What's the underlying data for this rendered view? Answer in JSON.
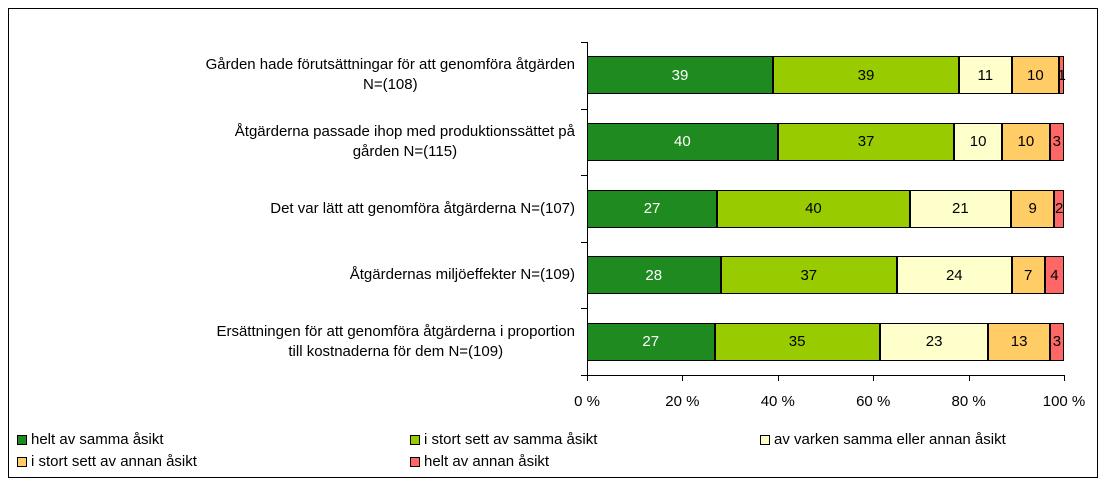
{
  "chart_data": {
    "type": "bar",
    "orientation": "horizontal",
    "stack": "percent",
    "categories": [
      "Gården hade förutsättningar för att genomföra åtgärden\nN=(108)",
      "Åtgärderna passade ihop med produktionssättet på\ngården N=(115)",
      "Det var lätt att genomföra åtgärderna N=(107)",
      "Åtgärdernas miljöeffekter N=(109)",
      "Ersättningen för att genomföra åtgärderna i proportion\ntill kostnaderna för dem N=(109)"
    ],
    "series": [
      {
        "name": "helt av samma åsikt",
        "color": "#1f8a1f",
        "label_color": "#ffffff",
        "values": [
          39,
          40,
          27,
          28,
          27
        ]
      },
      {
        "name": "i stort sett av samma åsikt",
        "color": "#99cc00",
        "label_color": "#000000",
        "values": [
          39,
          37,
          40,
          37,
          35
        ]
      },
      {
        "name": "av varken samma eller annan åsikt",
        "color": "#ffffcc",
        "label_color": "#000000",
        "values": [
          11,
          10,
          21,
          24,
          23
        ]
      },
      {
        "name": "i stort sett av annan åsikt",
        "color": "#ffcc66",
        "label_color": "#000000",
        "values": [
          10,
          10,
          9,
          7,
          13
        ]
      },
      {
        "name": "helt av annan åsikt",
        "color": "#ff6666",
        "label_color": "#000000",
        "values": [
          1,
          3,
          2,
          4,
          3
        ]
      }
    ],
    "xlim": [
      0,
      100
    ],
    "xticks": [
      {
        "value": 0,
        "label": "0 %"
      },
      {
        "value": 20,
        "label": "20 %"
      },
      {
        "value": 40,
        "label": "40 %"
      },
      {
        "value": 60,
        "label": "60 %"
      },
      {
        "value": 80,
        "label": "80 %"
      },
      {
        "value": 100,
        "label": "100 %"
      }
    ],
    "legend": "bottom"
  }
}
